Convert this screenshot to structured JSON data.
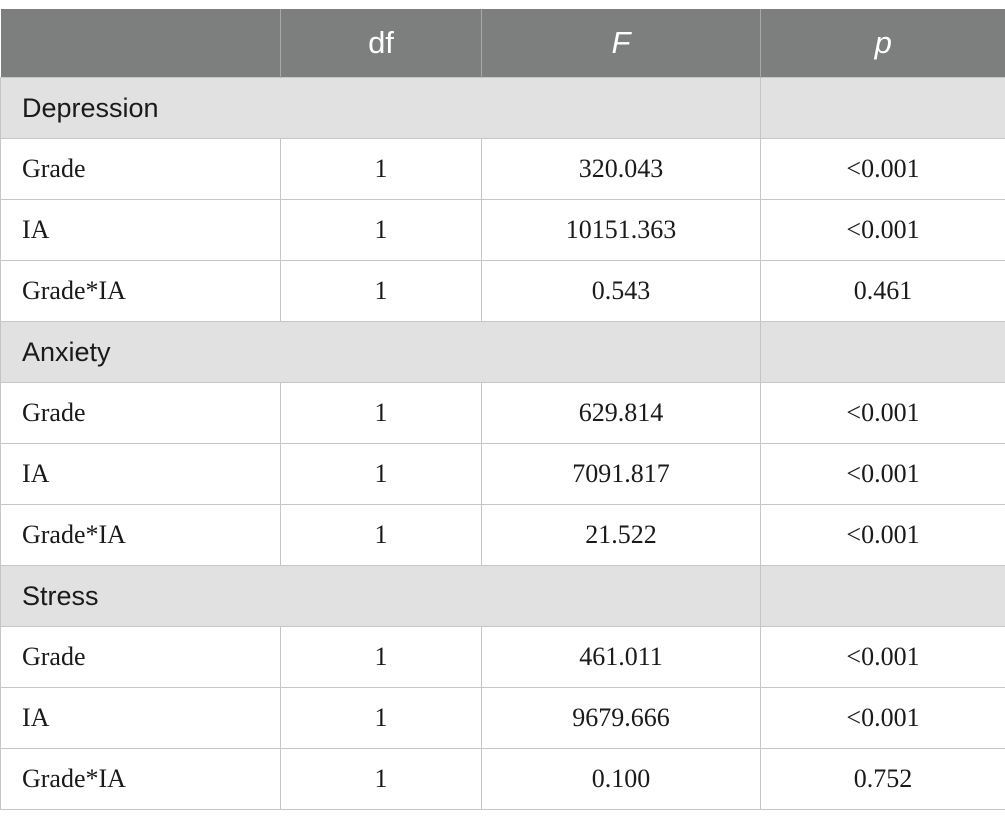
{
  "header": {
    "col0": "",
    "col1": "df",
    "col2": "F",
    "col3": "p"
  },
  "sections": [
    {
      "label": "Depression",
      "rows": [
        {
          "effect": "Grade",
          "df": "1",
          "F": "320.043",
          "p": "<0.001"
        },
        {
          "effect": "IA",
          "df": "1",
          "F": "10151.363",
          "p": "<0.001"
        },
        {
          "effect": "Grade*IA",
          "df": "1",
          "F": "0.543",
          "p": "0.461"
        }
      ]
    },
    {
      "label": "Anxiety",
      "rows": [
        {
          "effect": "Grade",
          "df": "1",
          "F": "629.814",
          "p": "<0.001"
        },
        {
          "effect": "IA",
          "df": "1",
          "F": "7091.817",
          "p": "<0.001"
        },
        {
          "effect": "Grade*IA",
          "df": "1",
          "F": "21.522",
          "p": "<0.001"
        }
      ]
    },
    {
      "label": "Stress",
      "rows": [
        {
          "effect": "Grade",
          "df": "1",
          "F": "461.011",
          "p": "<0.001"
        },
        {
          "effect": "IA",
          "df": "1",
          "F": "9679.666",
          "p": "<0.001"
        },
        {
          "effect": "Grade*IA",
          "df": "1",
          "F": "0.100",
          "p": "0.752"
        }
      ]
    }
  ],
  "colors": {
    "header_bg": "#7d7f7e",
    "section_bg": "#e1e1e1",
    "grid_line": "#c6c6c6"
  }
}
